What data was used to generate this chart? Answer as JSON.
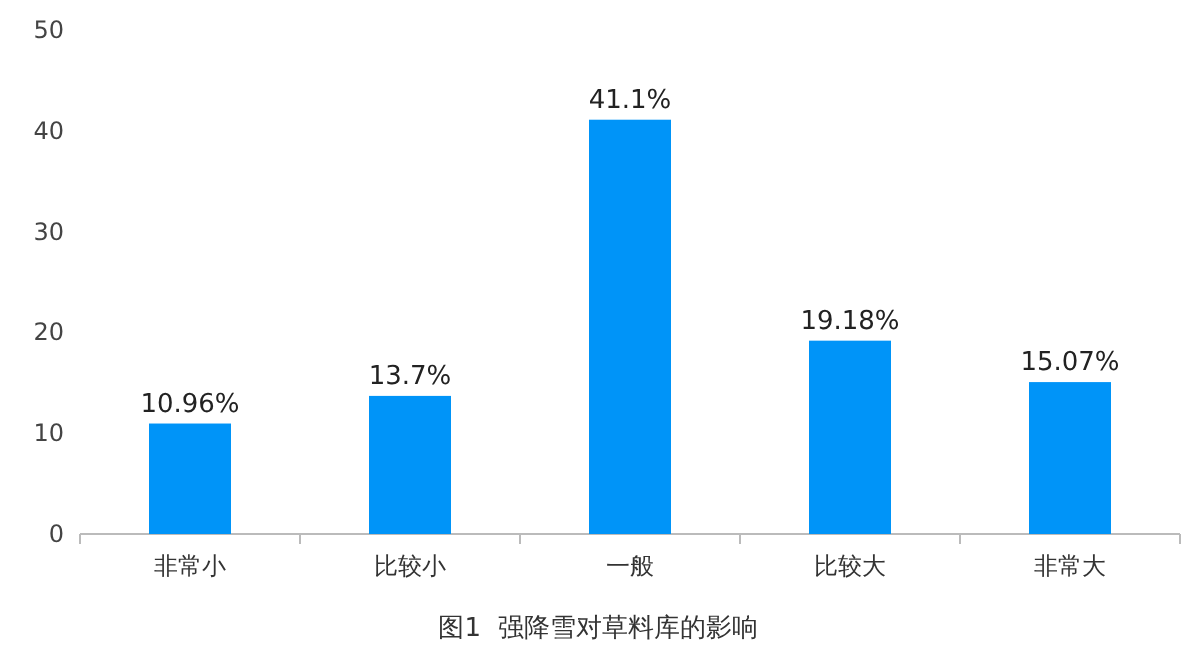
{
  "chart_data": {
    "type": "bar",
    "categories": [
      "非常小",
      "比较小",
      "一般",
      "比较大",
      "非常大"
    ],
    "values": [
      10.96,
      13.7,
      41.1,
      19.18,
      15.07
    ],
    "value_labels": [
      "10.96%",
      "13.7%",
      "41.1%",
      "19.18%",
      "15.07%"
    ],
    "color": "#0094f8",
    "ylim": [
      0,
      50
    ],
    "yticks": [
      0,
      10,
      20,
      30,
      40,
      50
    ],
    "annotations": [
      "图1  强降雪对草料库的影响"
    ]
  }
}
